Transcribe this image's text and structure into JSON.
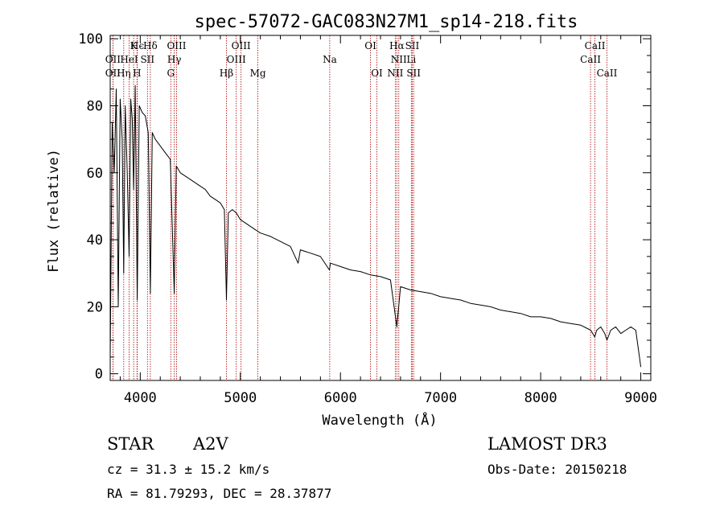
{
  "chart_data": {
    "type": "line",
    "title": "spec-57072-GAC083N27M1_sp14-218.fits",
    "xlabel": "Wavelength (Å)",
    "ylabel": "Flux (relative)",
    "xlim": [
      3700,
      9100
    ],
    "ylim": [
      -2,
      101
    ],
    "x_ticks": [
      4000,
      5000,
      6000,
      7000,
      8000,
      9000
    ],
    "y_ticks": [
      0,
      20,
      40,
      60,
      80,
      100
    ],
    "series": [
      {
        "name": "flux",
        "points": [
          [
            3700,
            5
          ],
          [
            3720,
            75
          ],
          [
            3740,
            60
          ],
          [
            3760,
            85
          ],
          [
            3780,
            20
          ],
          [
            3800,
            82
          ],
          [
            3820,
            70
          ],
          [
            3835,
            30
          ],
          [
            3850,
            80
          ],
          [
            3870,
            60
          ],
          [
            3889,
            35
          ],
          [
            3905,
            82
          ],
          [
            3920,
            76
          ],
          [
            3934,
            55
          ],
          [
            3950,
            86
          ],
          [
            3970,
            22
          ],
          [
            3990,
            80
          ],
          [
            4020,
            78
          ],
          [
            4050,
            77
          ],
          [
            4080,
            72
          ],
          [
            4101,
            24
          ],
          [
            4120,
            72
          ],
          [
            4150,
            70
          ],
          [
            4200,
            68
          ],
          [
            4250,
            66
          ],
          [
            4300,
            64
          ],
          [
            4340,
            24
          ],
          [
            4360,
            62
          ],
          [
            4400,
            60
          ],
          [
            4450,
            59
          ],
          [
            4500,
            58
          ],
          [
            4550,
            57
          ],
          [
            4600,
            56
          ],
          [
            4650,
            55
          ],
          [
            4700,
            53
          ],
          [
            4750,
            52
          ],
          [
            4800,
            51
          ],
          [
            4840,
            49
          ],
          [
            4861,
            22
          ],
          [
            4880,
            48
          ],
          [
            4920,
            49
          ],
          [
            4960,
            48
          ],
          [
            5000,
            46
          ],
          [
            5050,
            45
          ],
          [
            5100,
            44
          ],
          [
            5150,
            43
          ],
          [
            5200,
            42
          ],
          [
            5300,
            41
          ],
          [
            5400,
            39.5
          ],
          [
            5500,
            38
          ],
          [
            5577,
            33
          ],
          [
            5600,
            37
          ],
          [
            5700,
            36
          ],
          [
            5800,
            35
          ],
          [
            5890,
            31
          ],
          [
            5900,
            33
          ],
          [
            6000,
            32
          ],
          [
            6100,
            31
          ],
          [
            6200,
            30.5
          ],
          [
            6300,
            29.5
          ],
          [
            6400,
            29
          ],
          [
            6500,
            28
          ],
          [
            6563,
            14
          ],
          [
            6600,
            26
          ],
          [
            6700,
            25
          ],
          [
            6800,
            24.5
          ],
          [
            6900,
            24
          ],
          [
            7000,
            23
          ],
          [
            7100,
            22.5
          ],
          [
            7200,
            22
          ],
          [
            7300,
            21
          ],
          [
            7400,
            20.5
          ],
          [
            7500,
            20
          ],
          [
            7600,
            19
          ],
          [
            7700,
            18.5
          ],
          [
            7800,
            18
          ],
          [
            7900,
            17
          ],
          [
            8000,
            17
          ],
          [
            8100,
            16.5
          ],
          [
            8200,
            15.5
          ],
          [
            8300,
            15
          ],
          [
            8400,
            14.5
          ],
          [
            8500,
            13
          ],
          [
            8540,
            11
          ],
          [
            8560,
            13
          ],
          [
            8600,
            14
          ],
          [
            8640,
            12
          ],
          [
            8662,
            10
          ],
          [
            8700,
            13
          ],
          [
            8750,
            14
          ],
          [
            8800,
            12
          ],
          [
            8850,
            13
          ],
          [
            8900,
            14
          ],
          [
            8950,
            13
          ],
          [
            9000,
            2
          ]
        ]
      }
    ],
    "spectral_lines": [
      {
        "label": "Hϵ",
        "wavelength": 3970,
        "row": 1
      },
      {
        "label": "OII",
        "wavelength": 3727,
        "row": 2
      },
      {
        "label": "OII",
        "wavelength": 3727,
        "row": 3
      },
      {
        "label": "Hη",
        "wavelength": 3835,
        "row": 3
      },
      {
        "label": "K",
        "wavelength": 3934,
        "row": 1
      },
      {
        "label": "HeI",
        "wavelength": 3889,
        "row": 2
      },
      {
        "label": "H",
        "wavelength": 3968,
        "row": 3
      },
      {
        "label": "SII",
        "wavelength": 4072,
        "row": 2
      },
      {
        "label": "Hδ",
        "wavelength": 4101,
        "row": 1
      },
      {
        "label": "OIII",
        "wavelength": 4363,
        "row": 1
      },
      {
        "label": "Hγ",
        "wavelength": 4340,
        "row": 2
      },
      {
        "label": "G",
        "wavelength": 4305,
        "row": 3
      },
      {
        "label": "Hβ",
        "wavelength": 4861,
        "row": 3
      },
      {
        "label": "OIII",
        "wavelength": 5007,
        "row": 1
      },
      {
        "label": "OIII",
        "wavelength": 4959,
        "row": 2
      },
      {
        "label": "Mg",
        "wavelength": 5175,
        "row": 3
      },
      {
        "label": "Na",
        "wavelength": 5893,
        "row": 2
      },
      {
        "label": "OI",
        "wavelength": 6300,
        "row": 1
      },
      {
        "label": "OI",
        "wavelength": 6364,
        "row": 3
      },
      {
        "label": "Hα",
        "wavelength": 6563,
        "row": 1
      },
      {
        "label": "SII",
        "wavelength": 6717,
        "row": 1
      },
      {
        "label": "NII",
        "wavelength": 6583,
        "row": 2
      },
      {
        "label": "Li",
        "wavelength": 6708,
        "row": 2
      },
      {
        "label": "NII",
        "wavelength": 6548,
        "row": 3
      },
      {
        "label": "SII",
        "wavelength": 6731,
        "row": 3
      },
      {
        "label": "CaII",
        "wavelength": 8542,
        "row": 1
      },
      {
        "label": "CaII",
        "wavelength": 8498,
        "row": 2
      },
      {
        "label": "CaII",
        "wavelength": 8662,
        "row": 3
      }
    ]
  },
  "footer": {
    "class": "STAR",
    "subclass": "A2V",
    "survey": "LAMOST DR3",
    "cz": "cz = 31.3 ± 15.2 km/s",
    "obs_date": "Obs-Date: 20150218",
    "radec": "RA =  81.79293, DEC =  28.37877"
  },
  "colors": {
    "spectrum": "#000000",
    "lines": "#aa0000",
    "axis": "#000000"
  }
}
